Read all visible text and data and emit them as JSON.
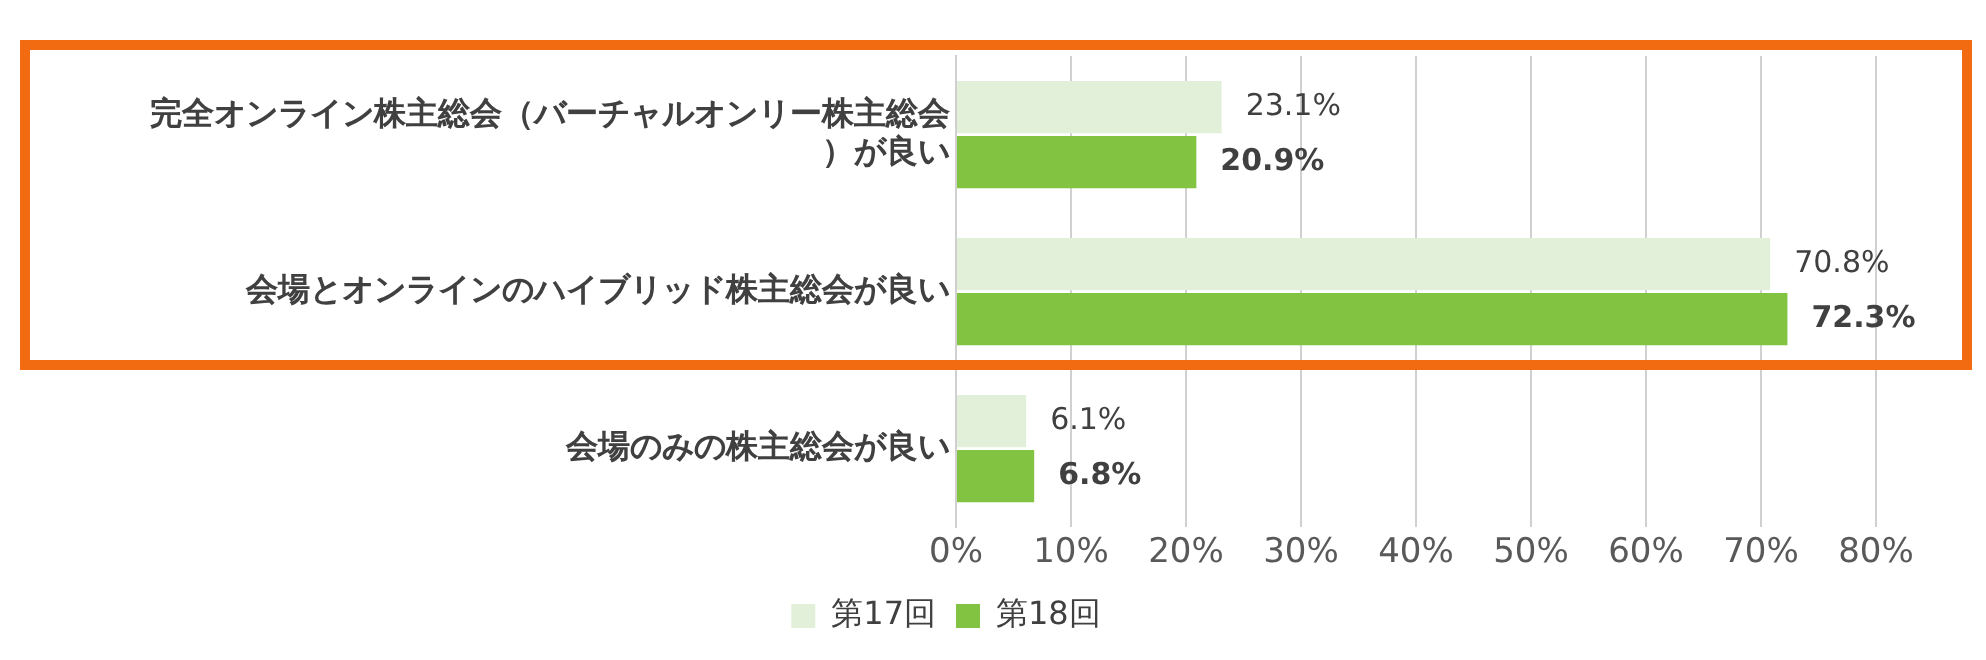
{
  "chart_data": {
    "type": "bar",
    "orientation": "horizontal",
    "categories": [
      "完全オンライン株主総会（バーチャルオンリー株主総会）が良い",
      "会場とオンラインのハイブリッド株主総会が良い",
      "会場のみの株主総会が良い"
    ],
    "series": [
      {
        "name": "第17回",
        "color": "#e2f0d9",
        "values": [
          23.1,
          70.8,
          6.1
        ],
        "value_labels": [
          "23.1%",
          "70.8%",
          "6.1%"
        ]
      },
      {
        "name": "第18回",
        "color": "#82c341",
        "values": [
          20.9,
          72.3,
          6.8
        ],
        "value_labels": [
          "20.9%",
          "72.3%",
          "6.8%"
        ]
      }
    ],
    "xlim": [
      0,
      80
    ],
    "xticks": [
      {
        "value": 0,
        "label": "0%"
      },
      {
        "value": 10,
        "label": "10%"
      },
      {
        "value": 20,
        "label": "20%"
      },
      {
        "value": 30,
        "label": "30%"
      },
      {
        "value": 40,
        "label": "40%"
      },
      {
        "value": 50,
        "label": "50%"
      },
      {
        "value": 60,
        "label": "60%"
      },
      {
        "value": 70,
        "label": "70%"
      },
      {
        "value": 80,
        "label": "80%"
      }
    ],
    "grid": "x",
    "legend": "bottom"
  }
}
